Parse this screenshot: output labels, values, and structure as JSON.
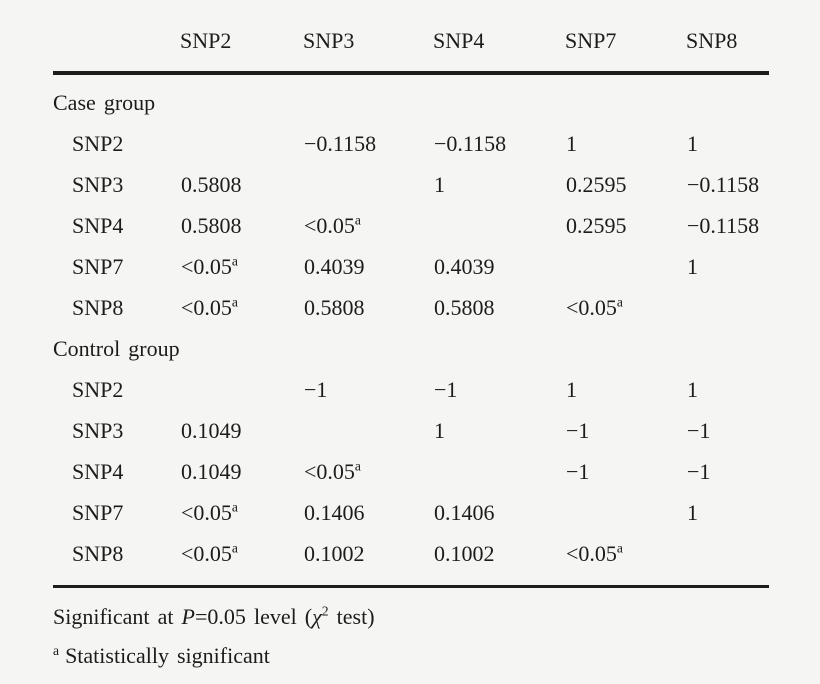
{
  "page": {
    "background": "#f5f5f3",
    "ink": "#1c1c1c"
  },
  "chart_data": {
    "type": "table",
    "columns": [
      "",
      "SNP2",
      "SNP3",
      "SNP4",
      "SNP7",
      "SNP8"
    ],
    "sections": [
      {
        "label": "Case group",
        "rows": [
          {
            "label": "SNP2",
            "cells": [
              "",
              "−0.1158",
              "−0.1158",
              "1",
              "1"
            ]
          },
          {
            "label": "SNP3",
            "cells": [
              "0.5808",
              "",
              "1",
              "0.2595",
              "−0.1158"
            ]
          },
          {
            "label": "SNP4",
            "cells": [
              "0.5808",
              "<0.05^a",
              "",
              "0.2595",
              "−0.1158"
            ]
          },
          {
            "label": "SNP7",
            "cells": [
              "<0.05^a",
              "0.4039",
              "0.4039",
              "",
              "1"
            ]
          },
          {
            "label": "SNP8",
            "cells": [
              "<0.05^a",
              "0.5808",
              "0.5808",
              "<0.05^a",
              ""
            ]
          }
        ]
      },
      {
        "label": "Control group",
        "rows": [
          {
            "label": "SNP2",
            "cells": [
              "",
              "−1",
              "−1",
              "1",
              "1"
            ]
          },
          {
            "label": "SNP3",
            "cells": [
              "0.1049",
              "",
              "1",
              "−1",
              "−1"
            ]
          },
          {
            "label": "SNP4",
            "cells": [
              "0.1049",
              "<0.05^a",
              "",
              "−1",
              "−1"
            ]
          },
          {
            "label": "SNP7",
            "cells": [
              "<0.05^a",
              "0.1406",
              "0.1406",
              "",
              "1"
            ]
          },
          {
            "label": "SNP8",
            "cells": [
              "<0.05^a",
              "0.1002",
              "0.1002",
              "<0.05^a",
              ""
            ]
          }
        ]
      }
    ],
    "footnotes": {
      "significance_parts": [
        {
          "t": "Significant at ",
          "style": ""
        },
        {
          "t": "P",
          "style": "italic"
        },
        {
          "t": "=0.05 level (",
          "style": ""
        },
        {
          "t": "χ",
          "style": "italic"
        },
        {
          "t": "2",
          "style": "sup"
        },
        {
          "t": " test)",
          "style": ""
        }
      ],
      "a_marker": "a",
      "a_text": "Statistically significant"
    }
  }
}
